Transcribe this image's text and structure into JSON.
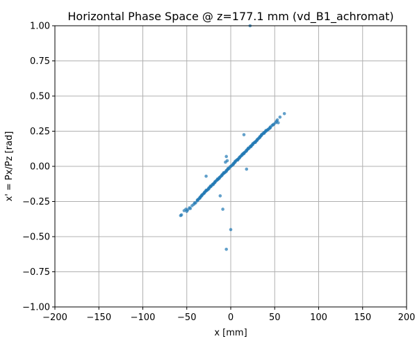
{
  "chart_data": {
    "type": "scatter",
    "title": "Horizontal Phase Space @ z=177.1 mm (vd_B1_achromat)",
    "xlabel": "x [mm]",
    "ylabel": "x' = Px/Pz [rad]",
    "xlim": [
      -200,
      200
    ],
    "ylim": [
      -1.0,
      1.0
    ],
    "xticks": [
      -200,
      -150,
      -100,
      -50,
      0,
      50,
      100,
      150,
      200
    ],
    "xtick_labels": [
      "−200",
      "−150",
      "−100",
      "−50",
      "0",
      "50",
      "100",
      "150",
      "200"
    ],
    "yticks": [
      -1.0,
      -0.75,
      -0.5,
      -0.25,
      0.0,
      0.25,
      0.5,
      0.75,
      1.0
    ],
    "ytick_labels": [
      "−1.00",
      "−0.75",
      "−0.50",
      "−0.25",
      "0.00",
      "0.25",
      "0.50",
      "0.75",
      "1.00"
    ],
    "grid": true,
    "point_color": "#1f77b4",
    "points": [
      [
        -57,
        -0.35
      ],
      [
        -56,
        -0.345
      ],
      [
        -53,
        -0.315
      ],
      [
        -51,
        -0.305
      ],
      [
        -50,
        -0.32
      ],
      [
        -49,
        -0.31
      ],
      [
        -47,
        -0.295
      ],
      [
        -46,
        -0.3
      ],
      [
        -44,
        -0.28
      ],
      [
        -42,
        -0.27
      ],
      [
        -41,
        -0.26
      ],
      [
        -40,
        -0.26
      ],
      [
        -38,
        -0.245
      ],
      [
        -37,
        -0.235
      ],
      [
        -36,
        -0.23
      ],
      [
        -35,
        -0.22
      ],
      [
        -34,
        -0.215
      ],
      [
        -33,
        -0.21
      ],
      [
        -32,
        -0.2
      ],
      [
        -31,
        -0.195
      ],
      [
        -30,
        -0.19
      ],
      [
        -29,
        -0.18
      ],
      [
        -28,
        -0.175
      ],
      [
        -27,
        -0.17
      ],
      [
        -26,
        -0.165
      ],
      [
        -25,
        -0.155
      ],
      [
        -24,
        -0.15
      ],
      [
        -23,
        -0.145
      ],
      [
        -22,
        -0.14
      ],
      [
        -21,
        -0.13
      ],
      [
        -20,
        -0.125
      ],
      [
        -19,
        -0.12
      ],
      [
        -18,
        -0.115
      ],
      [
        -17,
        -0.105
      ],
      [
        -16,
        -0.1
      ],
      [
        -15,
        -0.095
      ],
      [
        -14,
        -0.09
      ],
      [
        -13,
        -0.08
      ],
      [
        -12,
        -0.075
      ],
      [
        -11,
        -0.07
      ],
      [
        -10,
        -0.065
      ],
      [
        -9,
        -0.055
      ],
      [
        -8,
        -0.05
      ],
      [
        -7,
        -0.045
      ],
      [
        -6,
        -0.04
      ],
      [
        -5,
        -0.03
      ],
      [
        -4,
        -0.025
      ],
      [
        -3,
        -0.02
      ],
      [
        -2,
        -0.015
      ],
      [
        -1,
        -0.005
      ],
      [
        0,
        0.0
      ],
      [
        1,
        0.005
      ],
      [
        2,
        0.01
      ],
      [
        3,
        0.02
      ],
      [
        4,
        0.025
      ],
      [
        5,
        0.03
      ],
      [
        6,
        0.04
      ],
      [
        7,
        0.045
      ],
      [
        8,
        0.05
      ],
      [
        9,
        0.055
      ],
      [
        10,
        0.065
      ],
      [
        11,
        0.07
      ],
      [
        12,
        0.075
      ],
      [
        13,
        0.08
      ],
      [
        14,
        0.09
      ],
      [
        15,
        0.095
      ],
      [
        16,
        0.1
      ],
      [
        17,
        0.105
      ],
      [
        18,
        0.115
      ],
      [
        19,
        0.12
      ],
      [
        20,
        0.125
      ],
      [
        21,
        0.13
      ],
      [
        22,
        0.14
      ],
      [
        23,
        0.145
      ],
      [
        24,
        0.15
      ],
      [
        25,
        0.155
      ],
      [
        26,
        0.165
      ],
      [
        27,
        0.17
      ],
      [
        28,
        0.175
      ],
      [
        29,
        0.18
      ],
      [
        30,
        0.19
      ],
      [
        31,
        0.195
      ],
      [
        32,
        0.2
      ],
      [
        33,
        0.21
      ],
      [
        34,
        0.215
      ],
      [
        35,
        0.22
      ],
      [
        36,
        0.23
      ],
      [
        37,
        0.235
      ],
      [
        38,
        0.24
      ],
      [
        39,
        0.245
      ],
      [
        40,
        0.25
      ],
      [
        41,
        0.255
      ],
      [
        42,
        0.26
      ],
      [
        44,
        0.27
      ],
      [
        45,
        0.28
      ],
      [
        47,
        0.29
      ],
      [
        49,
        0.3
      ],
      [
        51,
        0.31
      ],
      [
        52,
        0.32
      ],
      [
        53,
        0.33
      ],
      [
        54,
        0.31
      ],
      [
        -35,
        -0.225
      ],
      [
        -30,
        -0.185
      ],
      [
        -25,
        -0.16
      ],
      [
        -20,
        -0.13
      ],
      [
        -15,
        -0.09
      ],
      [
        -10,
        -0.06
      ],
      [
        -5,
        -0.035
      ],
      [
        5,
        0.035
      ],
      [
        10,
        0.06
      ],
      [
        15,
        0.09
      ],
      [
        20,
        0.13
      ],
      [
        25,
        0.16
      ],
      [
        30,
        0.185
      ],
      [
        35,
        0.225
      ],
      [
        40,
        0.255
      ],
      [
        45,
        0.275
      ],
      [
        -38,
        -0.24
      ],
      [
        -33,
        -0.205
      ],
      [
        -28,
        -0.17
      ],
      [
        -23,
        -0.14
      ],
      [
        -18,
        -0.11
      ],
      [
        -13,
        -0.085
      ],
      [
        -8,
        -0.045
      ],
      [
        -3,
        -0.015
      ],
      [
        3,
        0.015
      ],
      [
        8,
        0.045
      ],
      [
        13,
        0.085
      ],
      [
        18,
        0.11
      ],
      [
        23,
        0.14
      ],
      [
        28,
        0.17
      ],
      [
        33,
        0.205
      ],
      [
        38,
        0.235
      ],
      [
        43,
        0.265
      ],
      [
        48,
        0.295
      ],
      [
        22,
        1.0
      ],
      [
        61,
        0.375
      ],
      [
        56,
        0.35
      ],
      [
        15,
        0.225
      ],
      [
        -5,
        0.07
      ],
      [
        -6,
        0.03
      ],
      [
        -4,
        0.04
      ],
      [
        -28,
        -0.07
      ],
      [
        -12,
        -0.21
      ],
      [
        -9,
        -0.305
      ],
      [
        0,
        -0.45
      ],
      [
        -5,
        -0.59
      ],
      [
        18,
        -0.02
      ]
    ]
  }
}
